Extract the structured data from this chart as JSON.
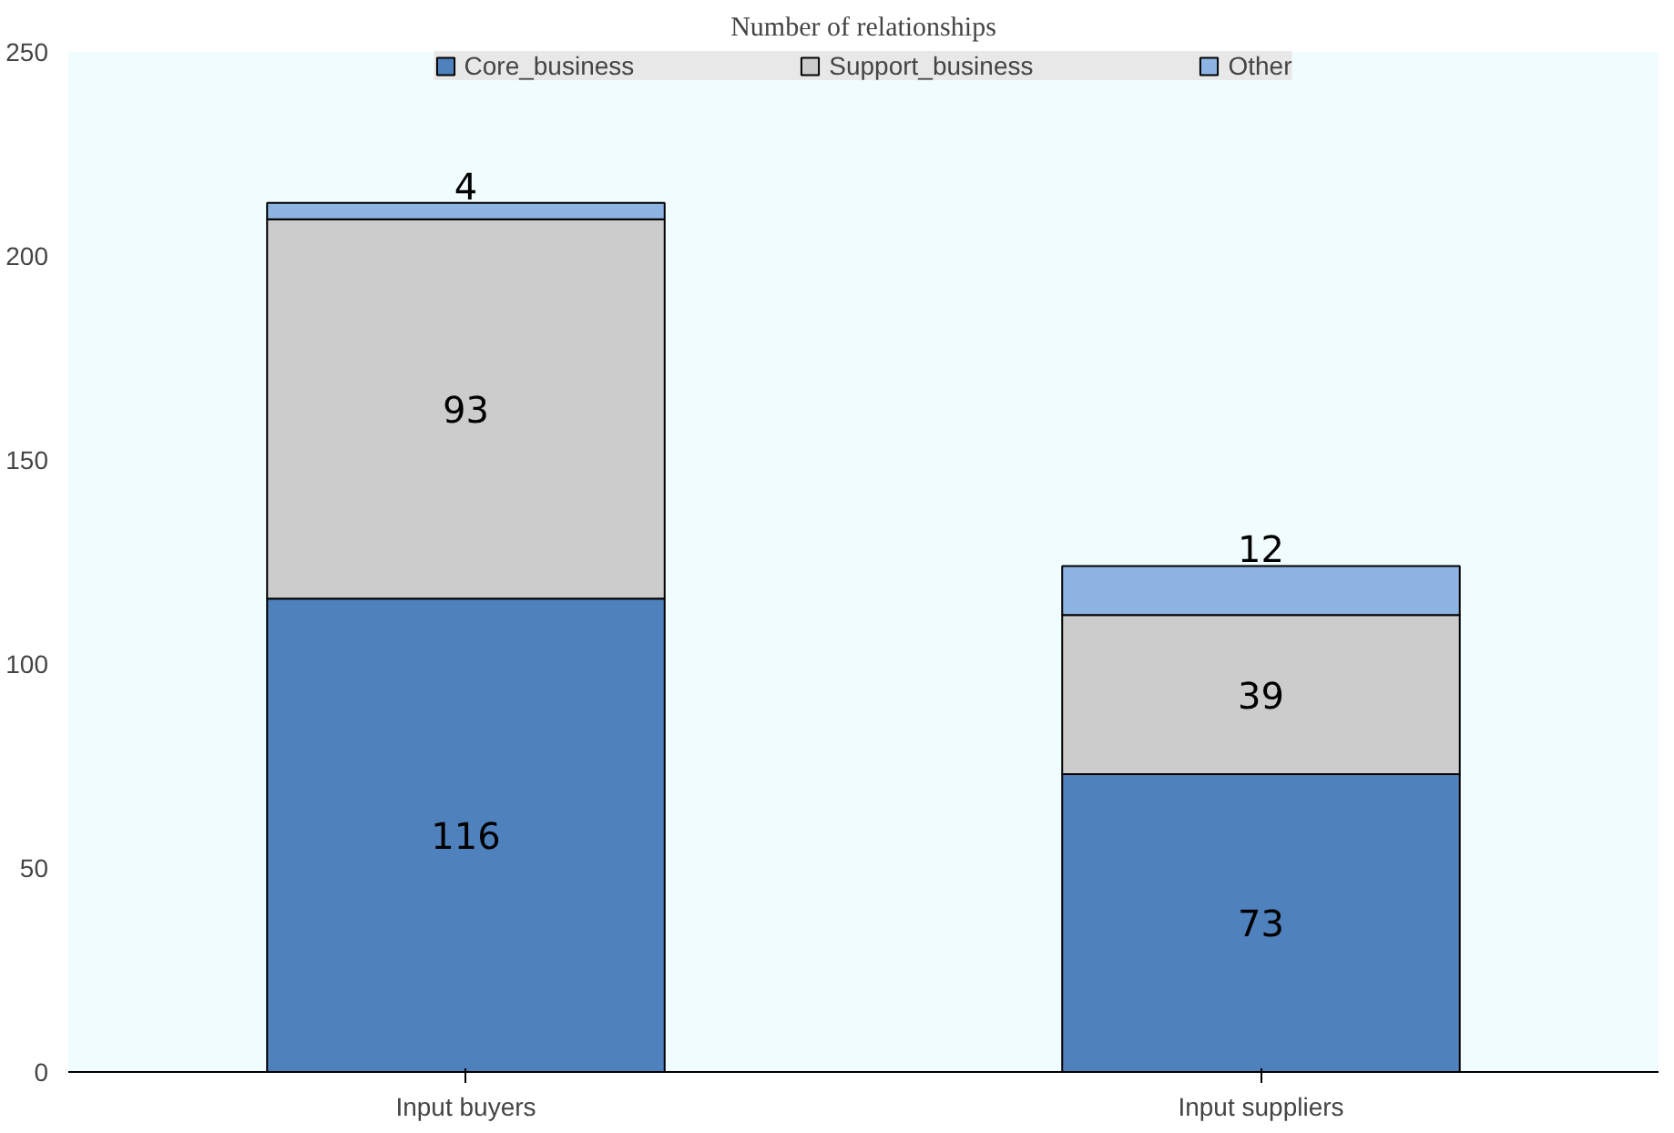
{
  "chart_data": {
    "type": "bar",
    "title": "Number of relationships",
    "stacked": true,
    "data_labels": true,
    "categories": [
      "Input buyers",
      "Input suppliers"
    ],
    "series": [
      {
        "name": "Core_business",
        "color": "#4f81bd",
        "values": [
          116,
          73
        ]
      },
      {
        "name": "Support_business",
        "color": "#cccccc",
        "values": [
          93,
          39
        ]
      },
      {
        "name": "Other",
        "color": "#8eb4e3",
        "values": [
          4,
          12
        ]
      }
    ],
    "ylim": [
      0,
      250
    ],
    "yticks": [
      0,
      50,
      100,
      150,
      200,
      250
    ],
    "grid": false,
    "legend": "top"
  }
}
